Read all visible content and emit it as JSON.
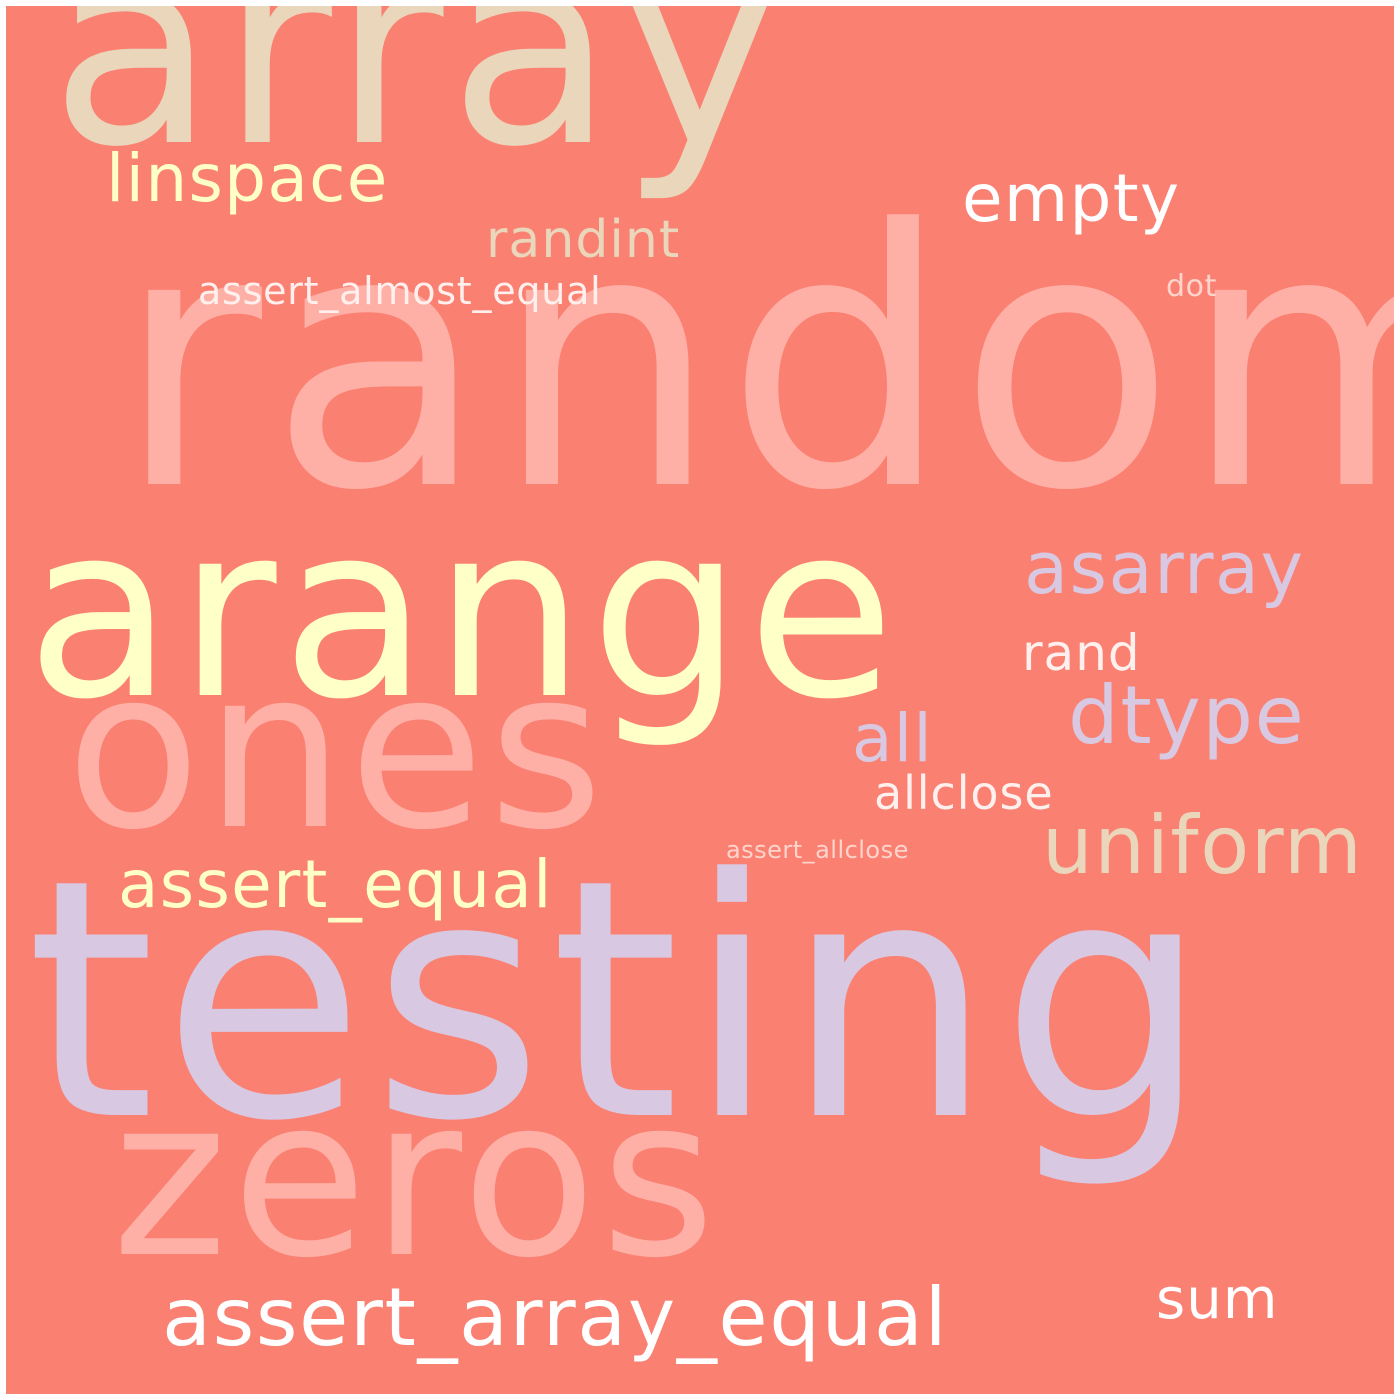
{
  "colors": {
    "background": "#fa8072",
    "beige": "#ead6bb",
    "pink": "#ffb0a6",
    "light_yellow": "#ffffc8",
    "lavender": "#d8c8e2",
    "white": "#ffffff",
    "pale_pink": "#ffd4cc"
  },
  "words": [
    {
      "text": "array",
      "color": "#ead6bb"
    },
    {
      "text": "random",
      "color": "#ffb0a6"
    },
    {
      "text": "arange",
      "color": "#ffffc8"
    },
    {
      "text": "ones",
      "color": "#ffb0a6"
    },
    {
      "text": "testing",
      "color": "#d8c8e2"
    },
    {
      "text": "zeros",
      "color": "#ffb0a6"
    },
    {
      "text": "linspace",
      "color": "#ffffc8"
    },
    {
      "text": "empty",
      "color": "#ffffff"
    },
    {
      "text": "randint",
      "color": "#ead6bb"
    },
    {
      "text": "assert_almost_equal",
      "color": "#fff0ee"
    },
    {
      "text": "dot",
      "color": "#ffd4cc"
    },
    {
      "text": "asarray",
      "color": "#d8c8e2"
    },
    {
      "text": "rand",
      "color": "#fff0ee"
    },
    {
      "text": "dtype",
      "color": "#d8c8e2"
    },
    {
      "text": "all",
      "color": "#d8c8e2"
    },
    {
      "text": "allclose",
      "color": "#fff0ee"
    },
    {
      "text": "uniform",
      "color": "#ead6bb"
    },
    {
      "text": "assert_allclose",
      "color": "#ffd4cc"
    },
    {
      "text": "assert_equal",
      "color": "#ffffc8"
    },
    {
      "text": "sum",
      "color": "#ffffff"
    },
    {
      "text": "assert_array_equal",
      "color": "#ffffff"
    }
  ]
}
